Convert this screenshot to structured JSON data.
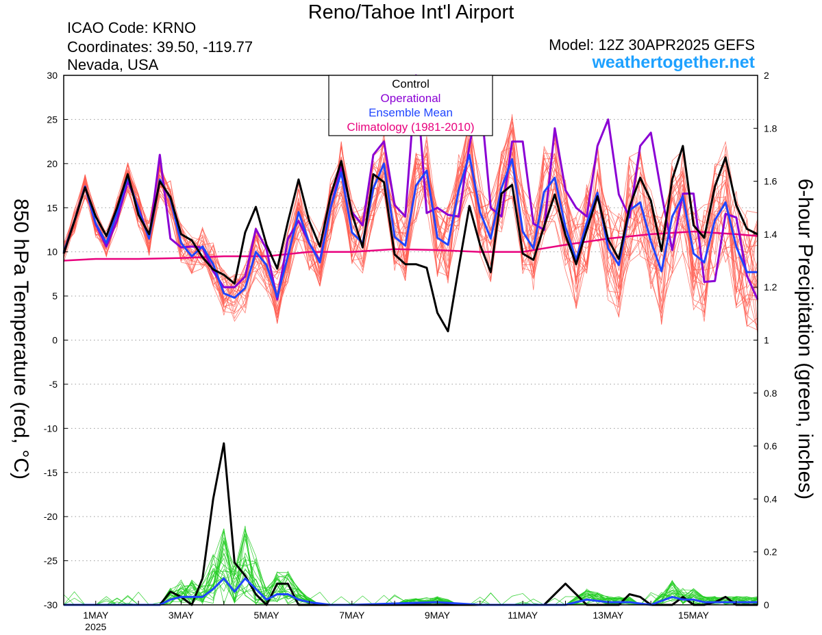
{
  "header": {
    "title": "Reno/Tahoe Int'l Airport",
    "icao": "ICAO Code: KRNO",
    "coordinates": "Coordinates: 39.50, -119.77",
    "region": "Nevada, USA",
    "model": "Model: 12Z 30APR2025 GEFS",
    "site": "weathertogether.net"
  },
  "chart_data": {
    "type": "line",
    "y_left_label": "850 hPa Temperature (red, °C)",
    "y_right_label": "6-hour Precipitation (green, inches)",
    "y_left_range": [
      -30,
      30
    ],
    "y_left_ticks": [
      30,
      25,
      20,
      15,
      10,
      5,
      0,
      -5,
      -10,
      -15,
      -20,
      -25,
      -30
    ],
    "y_right_range": [
      0,
      2
    ],
    "y_right_ticks": [
      "2",
      "1.8",
      "1.6",
      "1.4",
      "1.2",
      "1",
      "0.8",
      "0.6",
      "0.4",
      "0.2",
      "0"
    ],
    "x_range_days": [
      0.25,
      16.5
    ],
    "x_ticks": [
      {
        "day": 1,
        "label": "1MAY",
        "sub": "2025"
      },
      {
        "day": 3,
        "label": "3MAY",
        "sub": ""
      },
      {
        "day": 5,
        "label": "5MAY",
        "sub": ""
      },
      {
        "day": 7,
        "label": "7MAY",
        "sub": ""
      },
      {
        "day": 9,
        "label": "9MAY",
        "sub": ""
      },
      {
        "day": 11,
        "label": "11MAY",
        "sub": ""
      },
      {
        "day": 13,
        "label": "13MAY",
        "sub": ""
      },
      {
        "day": 15,
        "label": "15MAY",
        "sub": ""
      }
    ],
    "grid": "dotted horizontal",
    "legend_position": "top-center",
    "legend": [
      {
        "label": "Control",
        "color": "#000000"
      },
      {
        "label": "Operational",
        "color": "#8a00d4"
      },
      {
        "label": "Ensemble Mean",
        "color": "#1f45ff"
      },
      {
        "label": "Climatology (1981-2010)",
        "color": "#e8007d"
      }
    ],
    "temperature_series": [
      {
        "name": "Control",
        "color": "#000000",
        "x": [
          0.25,
          0.5,
          0.75,
          1,
          1.25,
          1.5,
          1.75,
          2,
          2.25,
          2.5,
          2.75,
          3,
          3.25,
          3.5,
          3.75,
          4,
          4.25,
          4.5,
          4.75,
          5,
          5.25,
          5.5,
          5.75,
          6,
          6.25,
          6.5,
          6.75,
          7,
          7.25,
          7.5,
          7.75,
          8,
          8.25,
          8.5,
          8.75,
          9,
          9.25,
          9.5,
          9.75,
          10,
          10.25,
          10.5,
          10.75,
          11,
          11.25,
          11.5,
          11.75,
          12,
          12.25,
          12.5,
          12.75,
          13,
          13.25,
          13.5,
          13.75,
          14,
          14.25,
          14.5,
          14.75,
          15,
          15.25,
          15.5,
          15.75,
          16,
          16.25,
          16.5
        ],
        "y": [
          9.8,
          13.5,
          17.3,
          14,
          11.8,
          15,
          18.8,
          14.2,
          12,
          18,
          16.2,
          12,
          11.3,
          9.4,
          8,
          7.4,
          6.4,
          12.2,
          15.1,
          10.8,
          8.1,
          13.4,
          18.2,
          13.5,
          10.6,
          16.3,
          20.3,
          14.3,
          10.5,
          18.8,
          17.9,
          9.7,
          8.6,
          8.6,
          8.2,
          3.1,
          1,
          8.2,
          15.2,
          10.8,
          7.7,
          16.6,
          17.6,
          9.8,
          9.1,
          12.9,
          16.5,
          11.9,
          8.6,
          12.5,
          16.3,
          11.4,
          9.2,
          15.1,
          18.4,
          15.8,
          10.1,
          18.2,
          22,
          13,
          11.6,
          17.4,
          20.7,
          15.3,
          12.6,
          12
        ]
      },
      {
        "name": "Operational",
        "color": "#8a00d4",
        "x": [
          0.25,
          0.5,
          0.75,
          1,
          1.25,
          1.5,
          1.75,
          2,
          2.25,
          2.5,
          2.75,
          3,
          3.25,
          3.5,
          3.75,
          4,
          4.25,
          4.5,
          4.75,
          5,
          5.25,
          5.5,
          5.75,
          6,
          6.25,
          6.5,
          6.75,
          7,
          7.25,
          7.5,
          7.75,
          8,
          8.25,
          8.5,
          8.75,
          9,
          9.25,
          9.5,
          9.75,
          10,
          10.25,
          10.5,
          10.75,
          11,
          11.25,
          11.5,
          11.75,
          12,
          12.25,
          12.5,
          12.75,
          13,
          13.25,
          13.5,
          13.75,
          14,
          14.25,
          14.5,
          14.75,
          15,
          15.25,
          15.5,
          15.75,
          16,
          16.25,
          16.5
        ],
        "y": [
          9.8,
          13.5,
          17.4,
          13.1,
          10.6,
          13.6,
          18,
          15,
          11.5,
          21,
          11.5,
          10.5,
          10.6,
          10.5,
          7.8,
          6,
          6,
          7.2,
          12.6,
          10.3,
          4.6,
          11.5,
          13.5,
          11,
          9,
          15,
          19.6,
          14.5,
          13,
          21,
          22.5,
          15.3,
          14,
          30,
          14.4,
          15,
          14.2,
          14,
          22,
          28,
          15,
          14,
          22.5,
          22.5,
          13.2,
          12.5,
          24,
          17,
          15,
          14,
          22,
          25,
          16.5,
          13.9,
          22,
          23.5,
          16.6,
          10.2,
          16.6,
          16.6,
          6.6,
          6.7,
          14.3,
          13.9,
          7.3,
          4.6
        ]
      },
      {
        "name": "Ensemble Mean",
        "color": "#1f45ff",
        "x": [
          0.25,
          0.5,
          0.75,
          1,
          1.25,
          1.5,
          1.75,
          2,
          2.25,
          2.5,
          2.75,
          3,
          3.25,
          3.5,
          3.75,
          4,
          4.25,
          4.5,
          4.75,
          5,
          5.25,
          5.5,
          5.75,
          6,
          6.25,
          6.5,
          6.75,
          7,
          7.25,
          7.5,
          7.75,
          8,
          8.25,
          8.5,
          8.75,
          9,
          9.25,
          9.5,
          9.75,
          10,
          10.25,
          10.5,
          10.75,
          11,
          11.25,
          11.5,
          11.75,
          12,
          12.25,
          12.5,
          12.75,
          13,
          13.25,
          13.5,
          13.75,
          14,
          14.25,
          14.5,
          14.75,
          15,
          15.25,
          15.5,
          15.75,
          16,
          16.25,
          16.5
        ],
        "y": [
          10,
          13.5,
          17.4,
          13.2,
          11,
          14.4,
          18.5,
          14.8,
          11.5,
          18.2,
          16,
          11,
          9.5,
          10.6,
          8.6,
          5.3,
          4.8,
          5.9,
          10,
          8.5,
          4.9,
          9.5,
          14.5,
          11,
          8.8,
          15,
          19,
          12.2,
          11,
          17.2,
          20,
          11.7,
          10.7,
          17.5,
          19.2,
          11.6,
          10.8,
          17,
          21,
          14.5,
          11.5,
          17.2,
          20.5,
          12.3,
          10.4,
          16.8,
          18.4,
          12.8,
          9.1,
          13.3,
          16.7,
          10.4,
          8.5,
          14.7,
          15.6,
          11.2,
          7.8,
          14,
          16.3,
          9.8,
          8.8,
          13.6,
          15.6,
          10.6,
          7.7,
          7.7
        ]
      },
      {
        "name": "Climatology (1981-2010)",
        "color": "#e8007d",
        "x": [
          0.25,
          1,
          2,
          3,
          4,
          5,
          6,
          7,
          8,
          9,
          10,
          11,
          12,
          13,
          14,
          15,
          16,
          16.5
        ],
        "y": [
          9,
          9.2,
          9.2,
          9.3,
          9.5,
          9.5,
          10,
          10,
          10.3,
          10.2,
          10,
          10,
          10.8,
          11.5,
          12,
          12.3,
          12,
          11.8
        ]
      }
    ],
    "precipitation_series": [
      {
        "name": "Control",
        "color": "#000000",
        "x": [
          0.25,
          2.5,
          2.75,
          3,
          3.25,
          3.5,
          3.75,
          4,
          4.25,
          4.5,
          4.75,
          5,
          5.25,
          5.5,
          5.75,
          11.5,
          11.75,
          12,
          12.25,
          12.5,
          12.75,
          13,
          13.25,
          13.5,
          13.75,
          14,
          14.5,
          14.75,
          15,
          15.25,
          15.5,
          15.75,
          16,
          16.25,
          16.5
        ],
        "y": [
          0,
          0,
          0.05,
          0.03,
          0,
          0.1,
          0.4,
          0.61,
          0.16,
          0.11,
          0.04,
          0,
          0.08,
          0.08,
          0,
          0,
          0.04,
          0.08,
          0.04,
          0,
          0,
          0,
          0,
          0.04,
          0.03,
          0,
          0,
          0.03,
          0,
          0,
          0.01,
          0.03,
          0,
          0,
          0
        ]
      },
      {
        "name": "Ensemble Mean",
        "color": "#1f45ff",
        "x": [
          0.25,
          1,
          2.5,
          2.75,
          3,
          3.5,
          3.75,
          4,
          4.25,
          4.5,
          4.75,
          5,
          5.25,
          5.5,
          5.75,
          6,
          6.5,
          7,
          9,
          10,
          11,
          12,
          12.5,
          13,
          13.5,
          14,
          14.5,
          14.75,
          15,
          15.25,
          15.5,
          15.75,
          16,
          16.25,
          16.5
        ],
        "y": [
          0,
          0,
          0,
          0.02,
          0.03,
          0.03,
          0.06,
          0.1,
          0.05,
          0.1,
          0.06,
          0.02,
          0.04,
          0.04,
          0.02,
          0.01,
          0,
          0,
          0.01,
          0,
          0,
          0,
          0.02,
          0.01,
          0.01,
          0,
          0.03,
          0.02,
          0.02,
          0.01,
          0.01,
          0.01,
          0.01,
          0.01,
          0.01
        ]
      }
    ]
  }
}
